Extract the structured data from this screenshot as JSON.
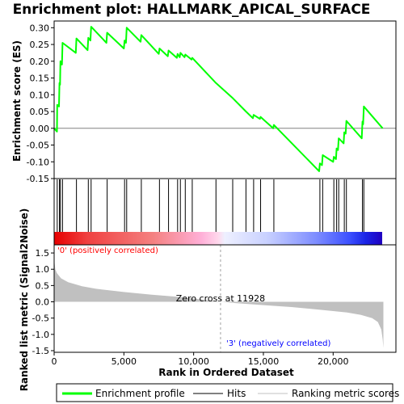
{
  "chart_data": {
    "type": "line",
    "title": "Enrichment plot: HALLMARK_APICAL_SURFACE",
    "es_panel": {
      "ylabel": "Enrichment score (ES)",
      "ylim": [
        -0.15,
        0.32
      ],
      "yticks": [
        "-0.15",
        "-0.10",
        "-0.05",
        "0.00",
        "0.05",
        "0.10",
        "0.15",
        "0.20",
        "0.25",
        "0.30"
      ],
      "ytick_values": [
        -0.15,
        -0.1,
        -0.05,
        0.0,
        0.05,
        0.1,
        0.15,
        0.2,
        0.25,
        0.3
      ],
      "series": [
        {
          "name": "Enrichment profile",
          "color": "#00ff00",
          "points": [
            [
              0,
              0.0
            ],
            [
              200,
              -0.01
            ],
            [
              220,
              0.07
            ],
            [
              350,
              0.065
            ],
            [
              380,
              0.135
            ],
            [
              420,
              0.13
            ],
            [
              450,
              0.2
            ],
            [
              560,
              0.19
            ],
            [
              600,
              0.255
            ],
            [
              1550,
              0.225
            ],
            [
              1600,
              0.268
            ],
            [
              2400,
              0.233
            ],
            [
              2450,
              0.27
            ],
            [
              2600,
              0.262
            ],
            [
              2650,
              0.303
            ],
            [
              3750,
              0.255
            ],
            [
              3800,
              0.285
            ],
            [
              5000,
              0.238
            ],
            [
              5050,
              0.262
            ],
            [
              5150,
              0.255
            ],
            [
              5200,
              0.3
            ],
            [
              6200,
              0.258
            ],
            [
              6250,
              0.278
            ],
            [
              7500,
              0.222
            ],
            [
              7550,
              0.238
            ],
            [
              8150,
              0.215
            ],
            [
              8200,
              0.232
            ],
            [
              8800,
              0.21
            ],
            [
              8850,
              0.222
            ],
            [
              9000,
              0.212
            ],
            [
              9050,
              0.225
            ],
            [
              9350,
              0.212
            ],
            [
              9400,
              0.22
            ],
            [
              9850,
              0.205
            ],
            [
              9900,
              0.21
            ],
            [
              11600,
              0.135
            ],
            [
              12800,
              0.09
            ],
            [
              13750,
              0.05
            ],
            [
              14250,
              0.03
            ],
            [
              14300,
              0.04
            ],
            [
              14750,
              0.028
            ],
            [
              14800,
              0.034
            ],
            [
              15700,
              0.0
            ],
            [
              15750,
              0.01
            ],
            [
              19000,
              -0.128
            ],
            [
              19050,
              -0.105
            ],
            [
              19200,
              -0.11
            ],
            [
              19250,
              -0.08
            ],
            [
              20000,
              -0.1
            ],
            [
              20050,
              -0.085
            ],
            [
              20200,
              -0.092
            ],
            [
              20250,
              -0.06
            ],
            [
              20350,
              -0.065
            ],
            [
              20400,
              -0.03
            ],
            [
              20750,
              -0.045
            ],
            [
              20800,
              -0.012
            ],
            [
              20900,
              -0.016
            ],
            [
              20950,
              0.022
            ],
            [
              22050,
              -0.03
            ],
            [
              22100,
              0.02
            ],
            [
              22150,
              0.012
            ],
            [
              22200,
              0.065
            ],
            [
              23550,
              0.0
            ]
          ]
        }
      ]
    },
    "hits": {
      "name": "Hits",
      "positions": [
        220,
        380,
        450,
        600,
        1600,
        2450,
        2650,
        3800,
        5050,
        5200,
        6250,
        7550,
        8200,
        8850,
        9050,
        9400,
        9900,
        11600,
        12800,
        13750,
        14300,
        14800,
        15750,
        19050,
        19250,
        20050,
        20250,
        20400,
        20800,
        20950,
        22100,
        22200
      ]
    },
    "rank_panel": {
      "ylabel": "Ranked list metric (Signal2Noise)",
      "xlabel": "Rank in Ordered Dataset",
      "ylim": [
        -1.55,
        1.75
      ],
      "yticks": [
        "-1.5",
        "-1.0",
        "-0.5",
        "0.0",
        "0.5",
        "1.0",
        "1.5"
      ],
      "ytick_values": [
        -1.5,
        -1.0,
        -0.5,
        0.0,
        0.5,
        1.0,
        1.5
      ],
      "xticks": [
        "0",
        "5,000",
        "10,000",
        "15,000",
        "20,000"
      ],
      "xtick_values": [
        0,
        5000,
        10000,
        15000,
        20000
      ],
      "xlim": [
        0,
        24500
      ],
      "n_genes": 23600,
      "zero_cross": 11928,
      "zero_cross_label": "Zero cross at 11928",
      "positive_label": "'0' (positively correlated)",
      "negative_label": "'3' (negatively correlated)",
      "metric_curve": [
        [
          0,
          1.68
        ],
        [
          30,
          1.2
        ],
        [
          80,
          1.0
        ],
        [
          200,
          0.88
        ],
        [
          500,
          0.72
        ],
        [
          1000,
          0.6
        ],
        [
          2000,
          0.48
        ],
        [
          3000,
          0.4
        ],
        [
          5000,
          0.3
        ],
        [
          7000,
          0.22
        ],
        [
          9000,
          0.15
        ],
        [
          11000,
          0.05
        ],
        [
          11928,
          0.0
        ],
        [
          13000,
          -0.04
        ],
        [
          15000,
          -0.1
        ],
        [
          17000,
          -0.16
        ],
        [
          19000,
          -0.24
        ],
        [
          21000,
          -0.33
        ],
        [
          22000,
          -0.4
        ],
        [
          22800,
          -0.5
        ],
        [
          23200,
          -0.62
        ],
        [
          23450,
          -0.85
        ],
        [
          23550,
          -1.15
        ],
        [
          23600,
          -1.42
        ]
      ]
    },
    "legend": [
      {
        "label": "Enrichment profile",
        "color": "#00ff00"
      },
      {
        "label": "Hits",
        "color": "#000000"
      },
      {
        "label": "Ranking metric scores",
        "color": "#c0c0c0"
      }
    ],
    "colors": {
      "profile": "#00ff00",
      "metric_fill": "#c0c0c0",
      "positive_text": "#ff0000",
      "negative_text": "#0000ff"
    }
  }
}
